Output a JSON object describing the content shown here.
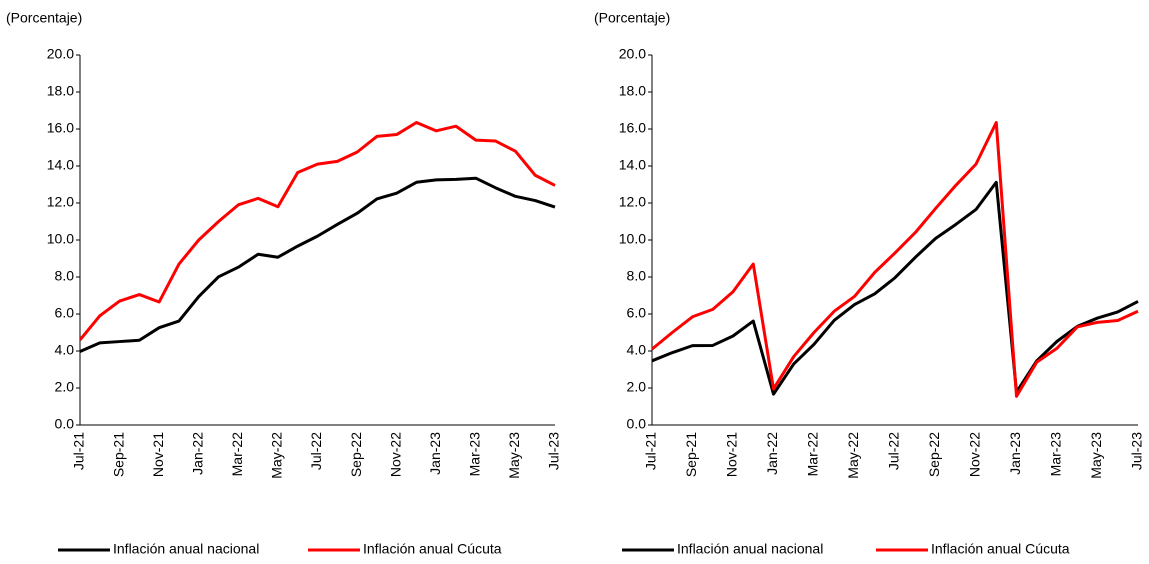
{
  "chart_data": [
    {
      "type": "line",
      "y_label": "(Porcentaje)",
      "categories": [
        "Jul-21",
        null,
        "Sep-21",
        null,
        "Nov-21",
        null,
        "Jan-22",
        null,
        "Mar-22",
        null,
        "May-22",
        null,
        "Jul-22",
        null,
        "Sep-22",
        null,
        "Nov-22",
        null,
        "Jan-23",
        null,
        "Mar-23",
        null,
        "May-23",
        null,
        "Jul-23"
      ],
      "series": [
        {
          "name": "Inflación anual nacional",
          "color": "#000000",
          "values": [
            3.97,
            4.44,
            4.51,
            4.58,
            5.26,
            5.62,
            6.94,
            8.01,
            8.53,
            9.23,
            9.07,
            9.67,
            10.21,
            10.84,
            11.44,
            12.22,
            12.53,
            13.12,
            13.25,
            13.28,
            13.34,
            12.82,
            12.36,
            12.13,
            11.78
          ]
        },
        {
          "name": "Inflación anual Cúcuta",
          "color": "#ff0000",
          "values": [
            4.6,
            5.9,
            6.7,
            7.05,
            6.65,
            8.7,
            10.0,
            11.0,
            11.9,
            12.25,
            11.8,
            13.65,
            14.1,
            14.25,
            14.75,
            15.6,
            15.7,
            16.35,
            15.9,
            16.15,
            15.4,
            15.35,
            14.8,
            13.5,
            12.95
          ]
        }
      ],
      "ylim": [
        0,
        20
      ],
      "yticks": [
        {
          "value": 0,
          "label": "0.0"
        },
        {
          "value": 2,
          "label": "2.0"
        },
        {
          "value": 4,
          "label": "4.0"
        },
        {
          "value": 6,
          "label": "6.0"
        },
        {
          "value": 8,
          "label": "8.0"
        },
        {
          "value": 10,
          "label": "10.0"
        },
        {
          "value": 12,
          "label": "12.0"
        },
        {
          "value": 14,
          "label": "14.0"
        },
        {
          "value": 16,
          "label": "16.0"
        },
        {
          "value": 18,
          "label": "18.0"
        },
        {
          "value": 20,
          "label": "20.0"
        }
      ],
      "legend": "bottom",
      "grid": false
    },
    {
      "type": "line",
      "y_label": "(Porcentaje)",
      "categories": [
        "Jul-21",
        null,
        "Sep-21",
        null,
        "Nov-21",
        null,
        "Jan-22",
        null,
        "Mar-22",
        null,
        "May-22",
        null,
        "Jul-22",
        null,
        "Sep-22",
        null,
        "Nov-22",
        null,
        "Jan-23",
        null,
        "Mar-23",
        null,
        "May-23",
        null,
        "Jul-23"
      ],
      "series": [
        {
          "name": "Inflación anual nacional",
          "color": "#000000",
          "values": [
            3.47,
            3.91,
            4.29,
            4.3,
            4.81,
            5.62,
            1.67,
            3.3,
            4.36,
            5.66,
            6.51,
            7.09,
            7.96,
            9.06,
            10.08,
            10.84,
            11.65,
            13.12,
            1.78,
            3.47,
            4.52,
            5.33,
            5.78,
            6.11,
            6.68
          ]
        },
        {
          "name": "Inflación anual Cúcuta",
          "color": "#ff0000",
          "values": [
            4.1,
            5.0,
            5.85,
            6.25,
            7.2,
            8.7,
            1.95,
            3.7,
            5.0,
            6.15,
            6.95,
            8.25,
            9.3,
            10.4,
            11.7,
            12.95,
            14.1,
            16.35,
            1.55,
            3.4,
            4.15,
            5.3,
            5.55,
            5.65,
            6.15
          ]
        }
      ],
      "ylim": [
        0,
        20
      ],
      "yticks": [
        {
          "value": 0,
          "label": "0.0"
        },
        {
          "value": 2,
          "label": "2.0"
        },
        {
          "value": 4,
          "label": "4.0"
        },
        {
          "value": 6,
          "label": "6.0"
        },
        {
          "value": 8,
          "label": "8.0"
        },
        {
          "value": 10,
          "label": "10.0"
        },
        {
          "value": 12,
          "label": "12.0"
        },
        {
          "value": 14,
          "label": "14.0"
        },
        {
          "value": 16,
          "label": "16.0"
        },
        {
          "value": 18,
          "label": "18.0"
        },
        {
          "value": 20,
          "label": "20.0"
        }
      ],
      "legend": "bottom",
      "grid": false
    }
  ]
}
